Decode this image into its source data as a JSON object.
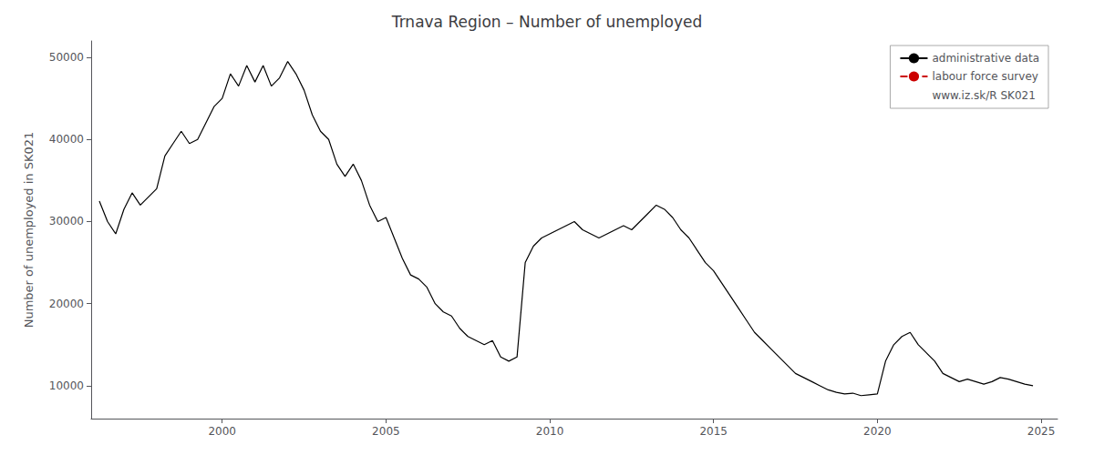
{
  "chart_data": {
    "type": "line",
    "title": "Trnava Region – Number of unemployed",
    "ylabel": "Number of unemployed in SK021",
    "xlim": [
      1996.0,
      2025.5
    ],
    "ylim": [
      6000,
      52000
    ],
    "xticks": [
      2000,
      2005,
      2010,
      2015,
      2020,
      2025
    ],
    "yticks": [
      10000,
      20000,
      30000,
      40000,
      50000
    ],
    "grid": false,
    "legend": "upper right",
    "series": [
      {
        "name": "administrative data",
        "color": "#000000",
        "line_style": "solid",
        "x": [
          1996.25,
          1996.5,
          1996.75,
          1997.0,
          1997.25,
          1997.5,
          1997.75,
          1998.0,
          1998.25,
          1998.5,
          1998.75,
          1999.0,
          1999.25,
          1999.5,
          1999.75,
          2000.0,
          2000.25,
          2000.5,
          2000.75,
          2001.0,
          2001.25,
          2001.5,
          2001.75,
          2002.0,
          2002.25,
          2002.5,
          2002.75,
          2003.0,
          2003.25,
          2003.5,
          2003.75,
          2004.0,
          2004.25,
          2004.5,
          2004.75,
          2005.0,
          2005.25,
          2005.5,
          2005.75,
          2006.0,
          2006.25,
          2006.5,
          2006.75,
          2007.0,
          2007.25,
          2007.5,
          2007.75,
          2008.0,
          2008.25,
          2008.5,
          2008.75,
          2009.0,
          2009.25,
          2009.5,
          2009.75,
          2010.0,
          2010.25,
          2010.5,
          2010.75,
          2011.0,
          2011.25,
          2011.5,
          2011.75,
          2012.0,
          2012.25,
          2012.5,
          2012.75,
          2013.0,
          2013.25,
          2013.5,
          2013.75,
          2014.0,
          2014.25,
          2014.5,
          2014.75,
          2015.0,
          2015.25,
          2015.5,
          2015.75,
          2016.0,
          2016.25,
          2016.5,
          2016.75,
          2017.0,
          2017.25,
          2017.5,
          2017.75,
          2018.0,
          2018.25,
          2018.5,
          2018.75,
          2019.0,
          2019.25,
          2019.5,
          2019.75,
          2020.0,
          2020.25,
          2020.5,
          2020.75,
          2021.0,
          2021.25,
          2021.5,
          2021.75,
          2022.0,
          2022.25,
          2022.5,
          2022.75,
          2023.0,
          2023.25,
          2023.5,
          2023.75,
          2024.0,
          2024.25,
          2024.5,
          2024.75
        ],
        "values": [
          32500,
          30000,
          28500,
          31500,
          33500,
          32000,
          33000,
          34000,
          38000,
          39500,
          41000,
          39500,
          40000,
          42000,
          44000,
          45000,
          48000,
          46500,
          49000,
          47000,
          49000,
          46500,
          47500,
          49500,
          48000,
          46000,
          43000,
          41000,
          40000,
          37000,
          35500,
          37000,
          35000,
          32000,
          30000,
          30500,
          28000,
          25500,
          23500,
          23000,
          22000,
          20000,
          19000,
          18500,
          17000,
          16000,
          15500,
          15000,
          15500,
          13500,
          13000,
          13500,
          25000,
          27000,
          28000,
          28500,
          29000,
          29500,
          30000,
          29000,
          28500,
          28000,
          28500,
          29000,
          29500,
          29000,
          30000,
          31000,
          32000,
          31500,
          30500,
          29000,
          28000,
          26500,
          25000,
          24000,
          22500,
          21000,
          19500,
          18000,
          16500,
          15500,
          14500,
          13500,
          12500,
          11500,
          11000,
          10500,
          10000,
          9500,
          9200,
          9000,
          9100,
          8800,
          8900,
          9000,
          13000,
          15000,
          16000,
          16500,
          15000,
          14000,
          13000,
          11500,
          11000,
          10500,
          10800,
          10500,
          10200,
          10500,
          11000,
          10800,
          10500,
          10200,
          10000
        ]
      },
      {
        "name": "labour force survey",
        "color": "#cc0000",
        "line_style": "dashed",
        "x": [],
        "values": []
      },
      {
        "name": "www.iz.sk/R SK021",
        "line_style": "none",
        "x": [],
        "values": []
      }
    ]
  }
}
